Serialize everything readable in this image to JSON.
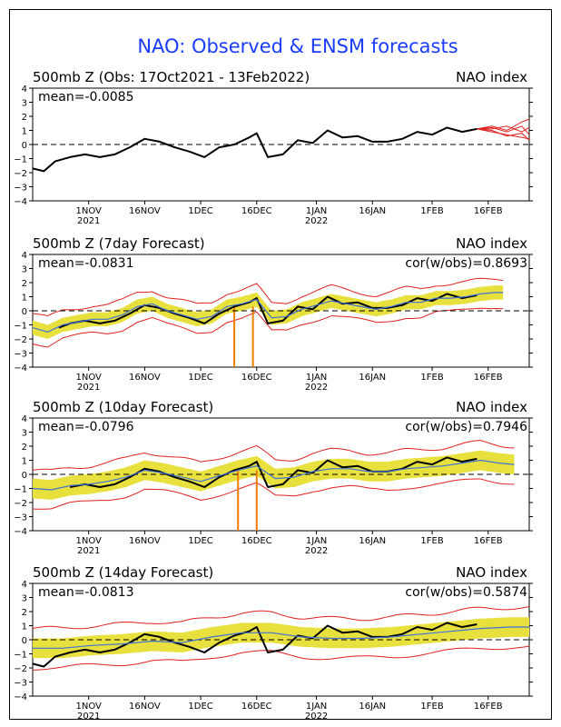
{
  "title": "NAO: Observed & ENSM forecasts",
  "colors": {
    "title": "#1a3cff",
    "observed": "#000000",
    "ens_mean": "#3f73d9",
    "spread_band": "#e8e03c",
    "ens_members": "#e02020",
    "outlier": "#f07c00",
    "zero_line": "#000000"
  },
  "chart_data": [
    {
      "type": "line",
      "label": "500mb Z (Obs: 17Oct2021 - 13Feb2022)",
      "index_label": "NAO index",
      "mean_label": "mean=-0.0085",
      "cor_label": "",
      "ylim": [
        -4,
        4
      ],
      "yticks": [
        -4,
        -3,
        -2,
        -1,
        0,
        1,
        2,
        3,
        4
      ],
      "xticks": [
        {
          "label": "1NOV",
          "sub": "2021",
          "date": "2021-11-01"
        },
        {
          "label": "16NOV",
          "sub": "",
          "date": "2021-11-16"
        },
        {
          "label": "1DEC",
          "sub": "",
          "date": "2021-12-01"
        },
        {
          "label": "16DEC",
          "sub": "",
          "date": "2021-12-16"
        },
        {
          "label": "1JAN",
          "sub": "2022",
          "date": "2022-01-01"
        },
        {
          "label": "16JAN",
          "sub": "",
          "date": "2022-01-16"
        },
        {
          "label": "1FEB",
          "sub": "",
          "date": "2022-02-01"
        },
        {
          "label": "16FEB",
          "sub": "",
          "date": "2022-02-16"
        }
      ],
      "xrange": [
        "2021-10-17",
        "2022-02-27"
      ],
      "series": [
        {
          "role": "observed",
          "x": [
            "2021-10-17",
            "2021-10-20",
            "2021-10-23",
            "2021-10-27",
            "2021-10-31",
            "2021-11-04",
            "2021-11-08",
            "2021-11-12",
            "2021-11-16",
            "2021-11-20",
            "2021-11-24",
            "2021-11-28",
            "2021-12-02",
            "2021-12-06",
            "2021-12-10",
            "2021-12-14",
            "2021-12-16",
            "2021-12-19",
            "2021-12-23",
            "2021-12-27",
            "2021-12-31",
            "2022-01-04",
            "2022-01-08",
            "2022-01-12",
            "2022-01-16",
            "2022-01-20",
            "2022-01-24",
            "2022-01-28",
            "2022-02-01",
            "2022-02-05",
            "2022-02-09",
            "2022-02-13"
          ],
          "y": [
            -1.7,
            -1.9,
            -1.2,
            -0.9,
            -0.7,
            -0.9,
            -0.7,
            -0.2,
            0.4,
            0.2,
            -0.2,
            -0.5,
            -0.9,
            -0.2,
            0.0,
            0.5,
            0.8,
            -0.9,
            -0.7,
            0.3,
            0.1,
            1.0,
            0.5,
            0.6,
            0.2,
            0.2,
            0.4,
            0.9,
            0.7,
            1.2,
            0.9,
            1.1
          ]
        }
      ],
      "forecast_members": [
        {
          "x": [
            "2022-02-13",
            "2022-02-17",
            "2022-02-21",
            "2022-02-25",
            "2022-02-27"
          ],
          "y": [
            1.1,
            1.3,
            1.0,
            1.6,
            1.8
          ]
        },
        {
          "x": [
            "2022-02-13",
            "2022-02-17",
            "2022-02-21",
            "2022-02-25",
            "2022-02-27"
          ],
          "y": [
            1.1,
            0.9,
            0.7,
            0.5,
            0.4
          ]
        },
        {
          "x": [
            "2022-02-13",
            "2022-02-17",
            "2022-02-21",
            "2022-02-25",
            "2022-02-27"
          ],
          "y": [
            1.1,
            1.1,
            1.3,
            0.9,
            1.2
          ]
        },
        {
          "x": [
            "2022-02-13",
            "2022-02-17",
            "2022-02-21",
            "2022-02-25",
            "2022-02-27"
          ],
          "y": [
            1.1,
            1.0,
            0.6,
            0.8,
            0.3
          ]
        },
        {
          "x": [
            "2022-02-13",
            "2022-02-17",
            "2022-02-21",
            "2022-02-25",
            "2022-02-27"
          ],
          "y": [
            1.1,
            1.2,
            0.9,
            1.3,
            0.7
          ]
        }
      ]
    },
    {
      "type": "line",
      "label": "500mb Z (7day Forecast)",
      "index_label": "NAO index",
      "mean_label": "mean=-0.0831",
      "cor_label": "cor(w/obs)=0.8693",
      "ylim": [
        -4,
        4
      ],
      "yticks": [
        -4,
        -3,
        -2,
        -1,
        0,
        1,
        2,
        3,
        4
      ],
      "xticks": [
        {
          "label": "1NOV",
          "sub": "2021",
          "date": "2021-11-01"
        },
        {
          "label": "16NOV",
          "sub": "",
          "date": "2021-11-16"
        },
        {
          "label": "1DEC",
          "sub": "",
          "date": "2021-12-01"
        },
        {
          "label": "16DEC",
          "sub": "",
          "date": "2021-12-16"
        },
        {
          "label": "1JAN",
          "sub": "2022",
          "date": "2022-01-01"
        },
        {
          "label": "16JAN",
          "sub": "",
          "date": "2022-01-16"
        },
        {
          "label": "1FEB",
          "sub": "",
          "date": "2022-02-01"
        },
        {
          "label": "16FEB",
          "sub": "",
          "date": "2022-02-16"
        }
      ],
      "xrange": [
        "2021-10-17",
        "2022-02-27"
      ],
      "spread": {
        "start": "2021-10-17",
        "end": "2022-02-20",
        "half_width": 0.5
      },
      "members_envelope": {
        "half_width": 1.0
      },
      "outlier_spikes": [
        {
          "date": "2021-12-10",
          "y": -4
        },
        {
          "date": "2021-12-15",
          "y": -4
        }
      ],
      "series": [
        {
          "role": "observed",
          "x": [
            "2021-10-24",
            "2021-10-27",
            "2021-10-31",
            "2021-11-04",
            "2021-11-08",
            "2021-11-12",
            "2021-11-16",
            "2021-11-20",
            "2021-11-24",
            "2021-11-28",
            "2021-12-02",
            "2021-12-06",
            "2021-12-10",
            "2021-12-14",
            "2021-12-16",
            "2021-12-19",
            "2021-12-23",
            "2021-12-27",
            "2021-12-31",
            "2022-01-04",
            "2022-01-08",
            "2022-01-12",
            "2022-01-16",
            "2022-01-20",
            "2022-01-24",
            "2022-01-28",
            "2022-02-01",
            "2022-02-05",
            "2022-02-09",
            "2022-02-13"
          ],
          "y": [
            -1.2,
            -0.9,
            -0.7,
            -0.9,
            -0.7,
            -0.2,
            0.4,
            0.2,
            -0.2,
            -0.5,
            -0.9,
            -0.2,
            0.3,
            0.6,
            0.9,
            -0.9,
            -0.7,
            0.3,
            0.1,
            1.0,
            0.5,
            0.6,
            0.2,
            0.2,
            0.4,
            0.9,
            0.7,
            1.2,
            0.9,
            1.1
          ]
        },
        {
          "role": "ens_mean",
          "x": [
            "2021-10-17",
            "2021-10-21",
            "2021-10-25",
            "2021-10-29",
            "2021-11-02",
            "2021-11-06",
            "2021-11-10",
            "2021-11-14",
            "2021-11-18",
            "2021-11-22",
            "2021-11-26",
            "2021-11-30",
            "2021-12-04",
            "2021-12-08",
            "2021-12-12",
            "2021-12-16",
            "2021-12-20",
            "2021-12-24",
            "2021-12-28",
            "2022-01-01",
            "2022-01-05",
            "2022-01-09",
            "2022-01-13",
            "2022-01-17",
            "2022-01-21",
            "2022-01-25",
            "2022-01-29",
            "2022-02-02",
            "2022-02-06",
            "2022-02-10",
            "2022-02-14",
            "2022-02-18",
            "2022-02-20"
          ],
          "y": [
            -1.2,
            -1.5,
            -1.0,
            -0.8,
            -0.6,
            -0.6,
            -0.3,
            0.3,
            0.5,
            0.0,
            -0.3,
            -0.6,
            -0.4,
            0.3,
            0.5,
            0.8,
            -0.5,
            -0.4,
            0.1,
            0.4,
            0.7,
            0.5,
            0.3,
            0.1,
            0.3,
            0.6,
            0.6,
            0.9,
            0.9,
            1.0,
            1.2,
            1.3,
            1.3
          ]
        }
      ]
    },
    {
      "type": "line",
      "label": "500mb Z (10day Forecast)",
      "index_label": "NAO index",
      "mean_label": "mean=-0.0796",
      "cor_label": "cor(w/obs)=0.7946",
      "ylim": [
        -4,
        4
      ],
      "yticks": [
        -4,
        -3,
        -2,
        -1,
        0,
        1,
        2,
        3,
        4
      ],
      "xticks": [
        {
          "label": "1NOV",
          "sub": "2021",
          "date": "2021-11-01"
        },
        {
          "label": "16NOV",
          "sub": "",
          "date": "2021-11-16"
        },
        {
          "label": "1DEC",
          "sub": "",
          "date": "2021-12-01"
        },
        {
          "label": "16DEC",
          "sub": "",
          "date": "2021-12-16"
        },
        {
          "label": "1JAN",
          "sub": "2022",
          "date": "2022-01-01"
        },
        {
          "label": "16JAN",
          "sub": "",
          "date": "2022-01-16"
        },
        {
          "label": "1FEB",
          "sub": "",
          "date": "2022-02-01"
        },
        {
          "label": "16FEB",
          "sub": "",
          "date": "2022-02-16"
        }
      ],
      "xrange": [
        "2021-10-17",
        "2022-02-27"
      ],
      "spread": {
        "start": "2021-10-17",
        "end": "2022-02-23",
        "half_width": 0.7
      },
      "members_envelope": {
        "half_width": 1.3
      },
      "outlier_spikes": [
        {
          "date": "2021-12-11",
          "y": -4
        },
        {
          "date": "2021-12-16",
          "y": -4
        }
      ],
      "series": [
        {
          "role": "observed",
          "x": [
            "2021-10-27",
            "2021-10-31",
            "2021-11-04",
            "2021-11-08",
            "2021-11-12",
            "2021-11-16",
            "2021-11-20",
            "2021-11-24",
            "2021-11-28",
            "2021-12-02",
            "2021-12-06",
            "2021-12-10",
            "2021-12-14",
            "2021-12-16",
            "2021-12-19",
            "2021-12-23",
            "2021-12-27",
            "2021-12-31",
            "2022-01-04",
            "2022-01-08",
            "2022-01-12",
            "2022-01-16",
            "2022-01-20",
            "2022-01-24",
            "2022-01-28",
            "2022-02-01",
            "2022-02-05",
            "2022-02-09",
            "2022-02-13"
          ],
          "y": [
            -0.9,
            -0.7,
            -0.9,
            -0.7,
            -0.2,
            0.4,
            0.2,
            -0.2,
            -0.5,
            -0.9,
            -0.2,
            0.3,
            0.6,
            0.9,
            -0.9,
            -0.7,
            0.3,
            0.1,
            1.0,
            0.5,
            0.6,
            0.2,
            0.2,
            0.4,
            0.9,
            0.7,
            1.2,
            0.9,
            1.1
          ]
        },
        {
          "role": "ens_mean",
          "x": [
            "2021-10-17",
            "2021-10-22",
            "2021-10-27",
            "2021-11-01",
            "2021-11-06",
            "2021-11-11",
            "2021-11-16",
            "2021-11-21",
            "2021-11-26",
            "2021-12-01",
            "2021-12-06",
            "2021-12-11",
            "2021-12-16",
            "2021-12-21",
            "2021-12-26",
            "2021-12-31",
            "2022-01-05",
            "2022-01-10",
            "2022-01-15",
            "2022-01-20",
            "2022-01-25",
            "2022-01-30",
            "2022-02-04",
            "2022-02-09",
            "2022-02-14",
            "2022-02-19",
            "2022-02-23"
          ],
          "y": [
            -1.0,
            -1.1,
            -0.8,
            -0.7,
            -0.5,
            -0.2,
            0.3,
            0.1,
            -0.2,
            -0.5,
            -0.1,
            0.3,
            0.6,
            -0.3,
            -0.2,
            0.2,
            0.4,
            0.4,
            0.2,
            0.2,
            0.4,
            0.5,
            0.6,
            0.8,
            1.0,
            0.8,
            0.7
          ]
        }
      ]
    },
    {
      "type": "line",
      "label": "500mb Z (14day Forecast)",
      "index_label": "NAO index",
      "mean_label": "mean=-0.0813",
      "cor_label": "cor(w/obs)=0.5874",
      "ylim": [
        -4,
        4
      ],
      "yticks": [
        -4,
        -3,
        -2,
        -1,
        0,
        1,
        2,
        3,
        4
      ],
      "xticks": [
        {
          "label": "1NOV",
          "sub": "2021",
          "date": "2021-11-01"
        },
        {
          "label": "16NOV",
          "sub": "",
          "date": "2021-11-16"
        },
        {
          "label": "1DEC",
          "sub": "",
          "date": "2021-12-01"
        },
        {
          "label": "16DEC",
          "sub": "",
          "date": "2021-12-16"
        },
        {
          "label": "1JAN",
          "sub": "2022",
          "date": "2022-01-01"
        },
        {
          "label": "16JAN",
          "sub": "",
          "date": "2022-01-16"
        },
        {
          "label": "1FEB",
          "sub": "",
          "date": "2022-02-01"
        },
        {
          "label": "16FEB",
          "sub": "",
          "date": "2022-02-16"
        }
      ],
      "xrange": [
        "2021-10-17",
        "2022-02-27"
      ],
      "spread": {
        "start": "2021-10-17",
        "end": "2022-02-27",
        "half_width": 0.7
      },
      "members_envelope": {
        "half_width": 1.4
      },
      "outlier_spikes": [],
      "series": [
        {
          "role": "observed",
          "x": [
            "2021-10-17",
            "2021-10-20",
            "2021-10-23",
            "2021-10-27",
            "2021-10-31",
            "2021-11-04",
            "2021-11-08",
            "2021-11-12",
            "2021-11-16",
            "2021-11-20",
            "2021-11-24",
            "2021-11-28",
            "2021-12-02",
            "2021-12-06",
            "2021-12-10",
            "2021-12-14",
            "2021-12-16",
            "2021-12-19",
            "2021-12-23",
            "2021-12-27",
            "2021-12-31",
            "2022-01-04",
            "2022-01-08",
            "2022-01-12",
            "2022-01-16",
            "2022-01-20",
            "2022-01-24",
            "2022-01-28",
            "2022-02-01",
            "2022-02-05",
            "2022-02-09",
            "2022-02-13"
          ],
          "y": [
            -1.7,
            -1.9,
            -1.2,
            -0.9,
            -0.7,
            -0.9,
            -0.7,
            -0.2,
            0.4,
            0.2,
            -0.2,
            -0.5,
            -0.9,
            -0.2,
            0.3,
            0.6,
            0.9,
            -0.9,
            -0.7,
            0.3,
            0.1,
            1.0,
            0.5,
            0.6,
            0.2,
            0.2,
            0.4,
            0.9,
            0.7,
            1.2,
            0.9,
            1.1
          ]
        },
        {
          "role": "ens_mean",
          "x": [
            "2021-10-17",
            "2021-10-25",
            "2021-11-02",
            "2021-11-10",
            "2021-11-18",
            "2021-11-26",
            "2021-12-04",
            "2021-12-12",
            "2021-12-20",
            "2021-12-28",
            "2022-01-05",
            "2022-01-13",
            "2022-01-21",
            "2022-01-29",
            "2022-02-06",
            "2022-02-14",
            "2022-02-22",
            "2022-02-27"
          ],
          "y": [
            -0.6,
            -0.6,
            -0.4,
            -0.3,
            -0.1,
            -0.2,
            0.2,
            0.5,
            0.5,
            0.2,
            0.1,
            0.1,
            0.2,
            0.4,
            0.6,
            0.8,
            0.9,
            0.9
          ]
        }
      ]
    }
  ]
}
